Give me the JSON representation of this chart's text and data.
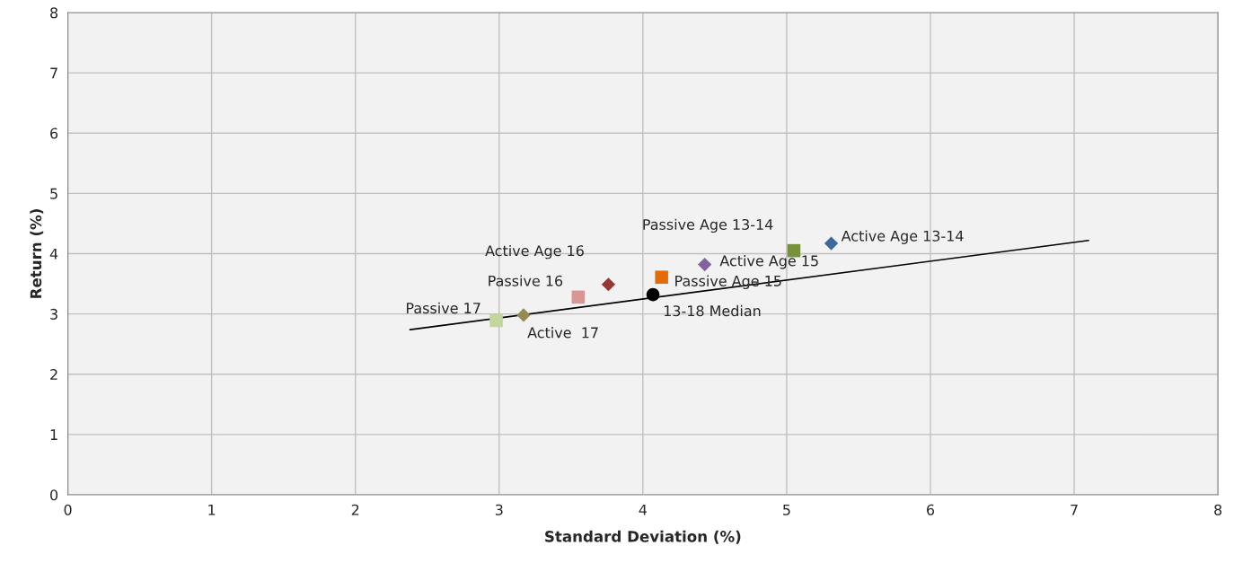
{
  "chart_data": {
    "type": "scatter",
    "xlabel": "Standard Deviation (%)",
    "ylabel": "Return (%)",
    "xlim": [
      0,
      8
    ],
    "ylim": [
      0,
      8
    ],
    "xticks": [
      0,
      1,
      2,
      3,
      4,
      5,
      6,
      7,
      8
    ],
    "yticks": [
      0,
      1,
      2,
      3,
      4,
      5,
      6,
      7,
      8
    ],
    "grid": true,
    "legend": false,
    "series": [
      {
        "name": "Active Age 13-14",
        "color": "#3c6aa0",
        "marker": "diamond",
        "x": [
          5.31
        ],
        "values": [
          4.17
        ]
      },
      {
        "name": "Passive Age 13-14",
        "color": "#76933c",
        "marker": "square",
        "x": [
          5.05
        ],
        "values": [
          4.05
        ]
      },
      {
        "name": "Active Age 15",
        "color": "#8064a2",
        "marker": "diamond",
        "x": [
          4.43
        ],
        "values": [
          3.82
        ]
      },
      {
        "name": "Passive Age 15",
        "color": "#e36c09",
        "marker": "square",
        "x": [
          4.13
        ],
        "values": [
          3.61
        ]
      },
      {
        "name": "13-18 Median",
        "color": "#000000",
        "marker": "circle",
        "x": [
          4.07
        ],
        "values": [
          3.32
        ]
      },
      {
        "name": "Active Age 16",
        "color": "#953735",
        "marker": "diamond",
        "x": [
          3.76
        ],
        "values": [
          3.49
        ]
      },
      {
        "name": "Passive 16",
        "color": "#d99694",
        "marker": "square",
        "x": [
          3.55
        ],
        "values": [
          3.28
        ]
      },
      {
        "name": "Active  17",
        "color": "#948a54",
        "marker": "diamond",
        "x": [
          3.17
        ],
        "values": [
          2.98
        ]
      },
      {
        "name": "Passive 17",
        "color": "#c3d69b",
        "marker": "square",
        "x": [
          2.98
        ],
        "values": [
          2.89
        ]
      },
      {
        "type": "line",
        "color": "#000000",
        "marker": "none",
        "line_style": "solid",
        "x": [
          2.38,
          7.1
        ],
        "values": [
          2.74,
          4.22
        ]
      }
    ]
  }
}
